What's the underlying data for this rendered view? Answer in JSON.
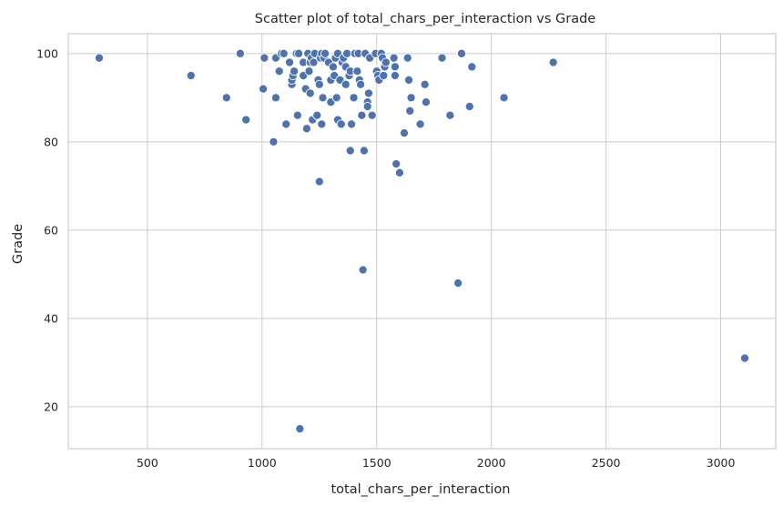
{
  "chart_data": {
    "type": "scatter",
    "title": "Scatter plot of total_chars_per_interaction vs Grade",
    "xlabel": "total_chars_per_interaction",
    "ylabel": "Grade",
    "xlim": [
      155,
      3240
    ],
    "ylim": [
      10.5,
      104.5
    ],
    "xticks": [
      500,
      1000,
      1500,
      2000,
      2500,
      3000
    ],
    "yticks": [
      20,
      40,
      60,
      80,
      100
    ],
    "grid": true,
    "color": "#4c72b0",
    "points": [
      {
        "x": 290,
        "y": 99
      },
      {
        "x": 690,
        "y": 95
      },
      {
        "x": 845,
        "y": 90
      },
      {
        "x": 905,
        "y": 100
      },
      {
        "x": 930,
        "y": 85
      },
      {
        "x": 1005,
        "y": 92
      },
      {
        "x": 1010,
        "y": 99
      },
      {
        "x": 1050,
        "y": 80
      },
      {
        "x": 1060,
        "y": 90
      },
      {
        "x": 1060,
        "y": 99
      },
      {
        "x": 1075,
        "y": 96
      },
      {
        "x": 1085,
        "y": 100
      },
      {
        "x": 1095,
        "y": 100
      },
      {
        "x": 1105,
        "y": 84
      },
      {
        "x": 1120,
        "y": 98
      },
      {
        "x": 1130,
        "y": 93
      },
      {
        "x": 1130,
        "y": 94
      },
      {
        "x": 1135,
        "y": 95
      },
      {
        "x": 1140,
        "y": 96
      },
      {
        "x": 1150,
        "y": 100
      },
      {
        "x": 1155,
        "y": 86
      },
      {
        "x": 1160,
        "y": 100
      },
      {
        "x": 1165,
        "y": 15
      },
      {
        "x": 1180,
        "y": 98
      },
      {
        "x": 1180,
        "y": 95
      },
      {
        "x": 1190,
        "y": 92
      },
      {
        "x": 1195,
        "y": 83
      },
      {
        "x": 1200,
        "y": 100
      },
      {
        "x": 1205,
        "y": 96
      },
      {
        "x": 1210,
        "y": 98
      },
      {
        "x": 1210,
        "y": 91
      },
      {
        "x": 1215,
        "y": 99
      },
      {
        "x": 1220,
        "y": 85
      },
      {
        "x": 1225,
        "y": 98
      },
      {
        "x": 1230,
        "y": 100
      },
      {
        "x": 1240,
        "y": 86
      },
      {
        "x": 1245,
        "y": 94
      },
      {
        "x": 1250,
        "y": 71
      },
      {
        "x": 1250,
        "y": 93
      },
      {
        "x": 1255,
        "y": 99
      },
      {
        "x": 1260,
        "y": 84
      },
      {
        "x": 1260,
        "y": 100
      },
      {
        "x": 1265,
        "y": 90
      },
      {
        "x": 1270,
        "y": 99
      },
      {
        "x": 1275,
        "y": 100
      },
      {
        "x": 1290,
        "y": 98
      },
      {
        "x": 1300,
        "y": 89
      },
      {
        "x": 1300,
        "y": 94
      },
      {
        "x": 1310,
        "y": 97
      },
      {
        "x": 1315,
        "y": 95
      },
      {
        "x": 1320,
        "y": 99
      },
      {
        "x": 1325,
        "y": 90
      },
      {
        "x": 1330,
        "y": 100
      },
      {
        "x": 1330,
        "y": 85
      },
      {
        "x": 1340,
        "y": 94
      },
      {
        "x": 1345,
        "y": 84
      },
      {
        "x": 1350,
        "y": 98
      },
      {
        "x": 1355,
        "y": 99
      },
      {
        "x": 1365,
        "y": 97
      },
      {
        "x": 1365,
        "y": 93
      },
      {
        "x": 1370,
        "y": 100
      },
      {
        "x": 1380,
        "y": 95
      },
      {
        "x": 1385,
        "y": 96
      },
      {
        "x": 1385,
        "y": 78
      },
      {
        "x": 1390,
        "y": 84
      },
      {
        "x": 1400,
        "y": 90
      },
      {
        "x": 1405,
        "y": 100
      },
      {
        "x": 1415,
        "y": 96
      },
      {
        "x": 1420,
        "y": 100
      },
      {
        "x": 1425,
        "y": 94
      },
      {
        "x": 1430,
        "y": 93
      },
      {
        "x": 1435,
        "y": 86
      },
      {
        "x": 1440,
        "y": 51
      },
      {
        "x": 1445,
        "y": 78
      },
      {
        "x": 1450,
        "y": 100
      },
      {
        "x": 1460,
        "y": 89
      },
      {
        "x": 1460,
        "y": 88
      },
      {
        "x": 1465,
        "y": 91
      },
      {
        "x": 1470,
        "y": 99
      },
      {
        "x": 1480,
        "y": 86
      },
      {
        "x": 1495,
        "y": 100
      },
      {
        "x": 1500,
        "y": 96
      },
      {
        "x": 1505,
        "y": 95
      },
      {
        "x": 1510,
        "y": 94
      },
      {
        "x": 1520,
        "y": 100
      },
      {
        "x": 1525,
        "y": 99
      },
      {
        "x": 1530,
        "y": 95
      },
      {
        "x": 1535,
        "y": 97
      },
      {
        "x": 1540,
        "y": 98
      },
      {
        "x": 1575,
        "y": 99
      },
      {
        "x": 1580,
        "y": 97
      },
      {
        "x": 1580,
        "y": 95
      },
      {
        "x": 1585,
        "y": 75
      },
      {
        "x": 1600,
        "y": 73
      },
      {
        "x": 1620,
        "y": 82
      },
      {
        "x": 1635,
        "y": 99
      },
      {
        "x": 1640,
        "y": 94
      },
      {
        "x": 1645,
        "y": 87
      },
      {
        "x": 1650,
        "y": 90
      },
      {
        "x": 1690,
        "y": 84
      },
      {
        "x": 1710,
        "y": 93
      },
      {
        "x": 1715,
        "y": 89
      },
      {
        "x": 1785,
        "y": 99
      },
      {
        "x": 1820,
        "y": 86
      },
      {
        "x": 1855,
        "y": 48
      },
      {
        "x": 1870,
        "y": 100
      },
      {
        "x": 1905,
        "y": 88
      },
      {
        "x": 1915,
        "y": 97
      },
      {
        "x": 2055,
        "y": 90
      },
      {
        "x": 2270,
        "y": 98
      },
      {
        "x": 3105,
        "y": 31
      }
    ]
  }
}
